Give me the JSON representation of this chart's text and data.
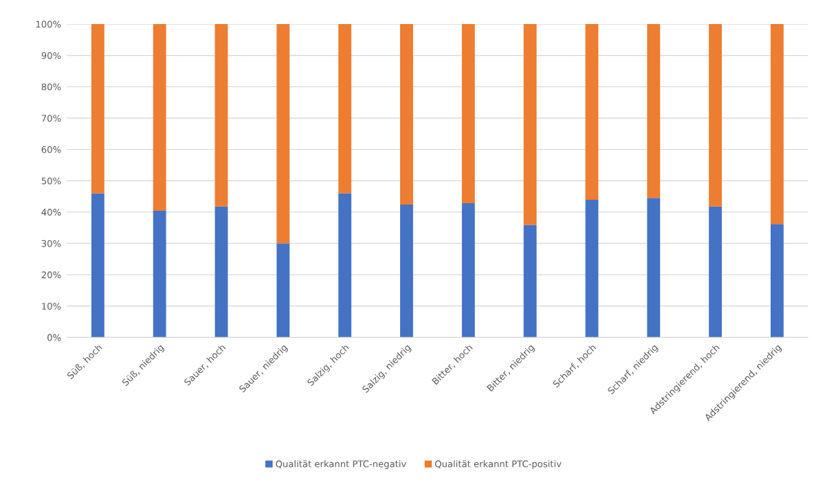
{
  "chart_data": {
    "type": "bar",
    "stacked": true,
    "categories": [
      "Süß, hoch",
      "Süß, niedrig",
      "Sauer, hoch",
      "Sauer, niedrig",
      "Salzig, hoch",
      "Salzig, niedrig",
      "Bitter, hoch",
      "Bitter, niedrig",
      "Scharf, hoch",
      "Scharf, niedrig",
      "Adstringierend, hoch",
      "Adstringierend, niedrig"
    ],
    "series": [
      {
        "name": "Qualität erkannt PTC-negativ",
        "color": "#4472c4",
        "values": [
          46,
          40.4,
          41.8,
          30,
          46,
          42.4,
          42.8,
          35.9,
          43.9,
          44.5,
          41.8,
          36.2
        ]
      },
      {
        "name": "Qualität erkannt PTC-positiv",
        "color": "#ed7d31",
        "values": [
          54,
          59.6,
          58.2,
          70,
          54,
          57.6,
          57.2,
          64.1,
          56.1,
          55.5,
          58.2,
          63.8
        ]
      }
    ],
    "ylim": [
      0,
      100
    ],
    "yticks": [
      {
        "value": 0,
        "label": "0%"
      },
      {
        "value": 10,
        "label": "10%"
      },
      {
        "value": 20,
        "label": "20%"
      },
      {
        "value": 30,
        "label": "30%"
      },
      {
        "value": 40,
        "label": "40%"
      },
      {
        "value": 50,
        "label": "50%"
      },
      {
        "value": 60,
        "label": "60%"
      },
      {
        "value": 70,
        "label": "70%"
      },
      {
        "value": 80,
        "label": "80%"
      },
      {
        "value": 90,
        "label": "90%"
      },
      {
        "value": 100,
        "label": "100%"
      }
    ],
    "grid": "y",
    "legend": "bottom"
  }
}
